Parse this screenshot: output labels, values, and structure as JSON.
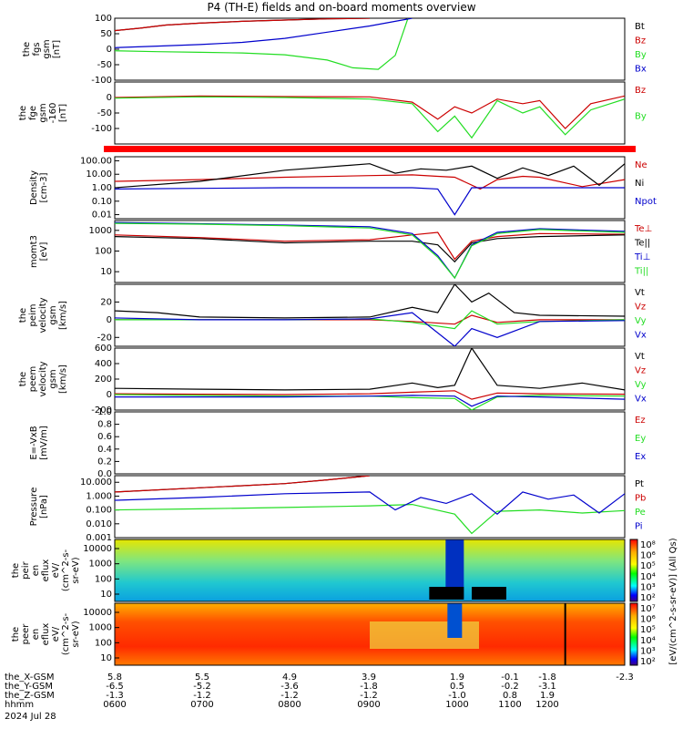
{
  "title": "P4 (TH-E) fields and on-board moments overview",
  "colors": {
    "black": "#000000",
    "red": "#cc0000",
    "green": "#22dd22",
    "blue": "#0000cc",
    "bar": "#ff0000"
  },
  "chart_data": [
    {
      "type": "line",
      "id": "fgs",
      "ylabel": [
        "the",
        "fgs",
        "gsm",
        "[nT]"
      ],
      "ylim": [
        -100,
        100
      ],
      "ticks": [
        "100",
        "50",
        "0",
        "-50",
        "-100"
      ],
      "series": [
        {
          "name": "Bt",
          "color": "black",
          "x": [
            6.0,
            6.3,
            6.6,
            7.0,
            7.5,
            8.0,
            8.5,
            9.0
          ],
          "y": [
            60,
            68,
            78,
            84,
            90,
            94,
            98,
            100
          ]
        },
        {
          "name": "Bz",
          "color": "red",
          "x": [
            6.0,
            6.3,
            6.6,
            7.0,
            7.5,
            8.0,
            8.5,
            9.0
          ],
          "y": [
            60,
            68,
            78,
            84,
            90,
            94,
            98,
            100
          ]
        },
        {
          "name": "By",
          "color": "green",
          "x": [
            6.0,
            6.5,
            7.0,
            7.5,
            8.0,
            8.5,
            8.8,
            9.1,
            9.3,
            9.45
          ],
          "y": [
            -5,
            -8,
            -10,
            -12,
            -18,
            -35,
            -60,
            -65,
            -20,
            100
          ]
        },
        {
          "name": "Bx",
          "color": "blue",
          "x": [
            6.0,
            6.5,
            7.0,
            7.5,
            8.0,
            8.5,
            9.0,
            9.3,
            9.5
          ],
          "y": [
            5,
            10,
            15,
            22,
            35,
            55,
            75,
            90,
            100
          ]
        }
      ]
    },
    {
      "type": "line",
      "id": "fge",
      "ylabel": [
        "the",
        "fge",
        "gsm",
        "-160",
        "[nT]"
      ],
      "ylim": [
        -150,
        50
      ],
      "ticks": [
        "0",
        "-50",
        "-100"
      ],
      "series": [
        {
          "name": "Bz",
          "color": "red",
          "x": [
            6.0,
            7.0,
            8.0,
            9.0,
            9.5,
            9.8,
            10.0,
            10.2,
            10.5,
            10.8,
            11.0,
            11.3,
            11.6,
            12.0
          ],
          "y": [
            0,
            5,
            3,
            2,
            -15,
            -70,
            -30,
            -50,
            -5,
            -20,
            -10,
            -100,
            -20,
            5
          ]
        },
        {
          "name": "By",
          "color": "green",
          "x": [
            6.0,
            7.0,
            8.0,
            9.0,
            9.5,
            9.8,
            10.0,
            10.2,
            10.5,
            10.8,
            11.0,
            11.3,
            11.6,
            12.0
          ],
          "y": [
            -2,
            2,
            0,
            -5,
            -20,
            -110,
            -60,
            -130,
            -10,
            -50,
            -30,
            -120,
            -40,
            -5
          ]
        }
      ]
    },
    {
      "type": "line",
      "id": "density",
      "ylabel": [
        "Density",
        "[cm-3]"
      ],
      "ylim": [
        0.005,
        200
      ],
      "scale": "log",
      "ticks": [
        "100.00",
        "10.00",
        "1.00",
        "0.10",
        "0.01"
      ],
      "series": [
        {
          "name": "Ne",
          "color": "red",
          "x": [
            6.0,
            7.0,
            8.0,
            9.0,
            9.5,
            9.8,
            10.0,
            10.3,
            10.5,
            10.8,
            11.0,
            11.5,
            12.0
          ],
          "y": [
            3,
            4,
            6,
            8,
            9,
            7,
            6,
            0.8,
            4,
            7,
            6,
            1.2,
            4
          ]
        },
        {
          "name": "Ni",
          "color": "black",
          "x": [
            6.0,
            7.0,
            8.0,
            9.0,
            9.3,
            9.6,
            9.9,
            10.2,
            10.5,
            10.8,
            11.1,
            11.4,
            11.7,
            12.0
          ],
          "y": [
            1,
            3,
            20,
            60,
            12,
            25,
            20,
            40,
            5,
            30,
            8,
            40,
            1.5,
            60
          ]
        },
        {
          "name": "Npot",
          "color": "blue",
          "x": [
            6.0,
            7.0,
            8.0,
            9.0,
            9.5,
            9.8,
            10.0,
            10.2,
            10.5,
            11.0,
            12.0
          ],
          "y": [
            0.8,
            0.9,
            1.0,
            1.0,
            1.0,
            0.8,
            0.01,
            1.0,
            1.0,
            1.0,
            1.0
          ]
        }
      ]
    },
    {
      "type": "line",
      "id": "mom",
      "ylabel": [
        "momt3",
        "[eV]"
      ],
      "ylim": [
        3,
        3000
      ],
      "scale": "log",
      "ticks": [
        "1000",
        "100",
        "10"
      ],
      "series": [
        {
          "name": "Te⊥",
          "color": "red",
          "x": [
            6.0,
            7.0,
            8.0,
            9.0,
            9.5,
            9.8,
            10.0,
            10.2,
            10.5,
            11.0,
            12.0
          ],
          "y": [
            600,
            450,
            300,
            350,
            600,
            800,
            40,
            300,
            500,
            700,
            650
          ]
        },
        {
          "name": "Te||",
          "color": "black",
          "x": [
            6.0,
            7.0,
            8.0,
            9.0,
            9.5,
            9.8,
            10.0,
            10.2,
            10.5,
            11.0,
            12.0
          ],
          "y": [
            500,
            400,
            250,
            300,
            300,
            200,
            30,
            250,
            400,
            500,
            600
          ]
        },
        {
          "name": "Ti⊥",
          "color": "blue",
          "x": [
            6.0,
            7.0,
            8.0,
            9.0,
            9.5,
            9.8,
            10.0,
            10.2,
            10.5,
            11.0,
            12.0
          ],
          "y": [
            2400,
            2100,
            1800,
            1500,
            700,
            60,
            5,
            200,
            800,
            1200,
            900
          ]
        },
        {
          "name": "Ti||",
          "color": "green",
          "x": [
            6.0,
            7.0,
            8.0,
            9.0,
            9.5,
            9.8,
            10.0,
            10.2,
            10.5,
            11.0,
            12.0
          ],
          "y": [
            2200,
            2000,
            1700,
            1300,
            600,
            50,
            5,
            180,
            700,
            1100,
            800
          ]
        }
      ]
    },
    {
      "type": "line",
      "id": "peim",
      "ylabel": [
        "the",
        "peim",
        "velocity",
        "gsm",
        "[km/s]"
      ],
      "ylim": [
        -30,
        40
      ],
      "ticks": [
        "20",
        "0",
        "-20"
      ],
      "series": [
        {
          "name": "Vt",
          "color": "black",
          "x": [
            6.0,
            6.5,
            7.0,
            8.0,
            9.0,
            9.5,
            9.8,
            10.0,
            10.2,
            10.4,
            10.7,
            11.0,
            12.0
          ],
          "y": [
            10,
            8,
            3,
            2,
            3,
            14,
            8,
            40,
            20,
            30,
            8,
            5,
            4
          ]
        },
        {
          "name": "Vz",
          "color": "red",
          "x": [
            6.0,
            7.0,
            8.0,
            9.0,
            9.5,
            10.0,
            10.2,
            10.5,
            11.0,
            12.0
          ],
          "y": [
            0,
            0,
            0,
            0,
            -2,
            -5,
            5,
            -3,
            0,
            0
          ]
        },
        {
          "name": "Vy",
          "color": "green",
          "x": [
            6.0,
            7.0,
            8.0,
            9.0,
            9.5,
            10.0,
            10.2,
            10.5,
            11.0,
            12.0
          ],
          "y": [
            0,
            0,
            0,
            1,
            -3,
            -10,
            10,
            -5,
            -2,
            0
          ]
        },
        {
          "name": "Vx",
          "color": "blue",
          "x": [
            6.0,
            7.0,
            8.0,
            9.0,
            9.5,
            10.0,
            10.2,
            10.5,
            11.0,
            12.0
          ],
          "y": [
            2,
            0,
            0,
            1,
            8,
            -30,
            -10,
            -20,
            -2,
            -1
          ]
        }
      ]
    },
    {
      "type": "line",
      "id": "peem",
      "ylabel": [
        "the",
        "peem",
        "velocity",
        "gsm",
        "[km/s]"
      ],
      "ylim": [
        -200,
        600
      ],
      "ticks": [
        "600",
        "400",
        "200",
        "0",
        "-200"
      ],
      "series": [
        {
          "name": "Vt",
          "color": "black",
          "x": [
            6.0,
            7.0,
            8.0,
            9.0,
            9.5,
            9.8,
            10.0,
            10.2,
            10.5,
            11.0,
            11.5,
            12.0
          ],
          "y": [
            80,
            70,
            60,
            70,
            150,
            90,
            120,
            600,
            120,
            80,
            150,
            60
          ]
        },
        {
          "name": "Vz",
          "color": "red",
          "x": [
            6.0,
            7.0,
            8.0,
            9.0,
            9.5,
            10.0,
            10.2,
            10.5,
            11.0,
            12.0
          ],
          "y": [
            10,
            5,
            0,
            10,
            30,
            50,
            -60,
            20,
            10,
            5
          ]
        },
        {
          "name": "Vy",
          "color": "green",
          "x": [
            6.0,
            7.0,
            8.0,
            9.0,
            9.5,
            10.0,
            10.2,
            10.5,
            11.0,
            12.0
          ],
          "y": [
            0,
            -10,
            -20,
            -20,
            -40,
            -50,
            -200,
            -30,
            -10,
            -20
          ]
        },
        {
          "name": "Vx",
          "color": "blue",
          "x": [
            6.0,
            7.0,
            8.0,
            9.0,
            9.5,
            10.0,
            10.2,
            10.5,
            11.0,
            12.0
          ],
          "y": [
            -30,
            -30,
            -30,
            -20,
            -10,
            -20,
            -150,
            -20,
            -30,
            -60
          ]
        }
      ]
    },
    {
      "type": "line",
      "id": "efield",
      "ylabel": [
        "E=-VxB",
        "[mV/m]"
      ],
      "ylim": [
        0,
        1
      ],
      "ticks": [
        "1.0",
        "0.8",
        "0.6",
        "0.4",
        "0.2",
        "0.0"
      ],
      "series": [
        {
          "name": "Ez",
          "color": "red",
          "x": [],
          "y": []
        },
        {
          "name": "Ey",
          "color": "green",
          "x": [],
          "y": []
        },
        {
          "name": "Ex",
          "color": "blue",
          "x": [],
          "y": []
        }
      ]
    },
    {
      "type": "line",
      "id": "pressure",
      "ylabel": [
        "Pressure",
        "[nPa]"
      ],
      "ylim": [
        0.001,
        30
      ],
      "scale": "log",
      "ticks": [
        "10.000",
        "1.000",
        "0.100",
        "0.010",
        "0.001"
      ],
      "series": [
        {
          "name": "Pt",
          "color": "black",
          "x": [
            6.0,
            7.0,
            8.0,
            8.5,
            9.0
          ],
          "y": [
            2,
            4,
            8,
            15,
            30
          ]
        },
        {
          "name": "Pb",
          "color": "red",
          "x": [
            6.0,
            7.0,
            8.0,
            8.5,
            9.0
          ],
          "y": [
            2,
            4,
            8,
            15,
            30
          ]
        },
        {
          "name": "Pe",
          "color": "green",
          "x": [
            6.0,
            7.0,
            8.0,
            9.0,
            9.5,
            10.0,
            10.2,
            10.5,
            11.0,
            11.5,
            12.0
          ],
          "y": [
            0.1,
            0.12,
            0.15,
            0.2,
            0.25,
            0.05,
            0.002,
            0.08,
            0.1,
            0.06,
            0.09
          ]
        },
        {
          "name": "Pi",
          "color": "blue",
          "x": [
            6.0,
            7.0,
            8.0,
            9.0,
            9.3,
            9.6,
            9.9,
            10.2,
            10.5,
            10.8,
            11.1,
            11.4,
            11.7,
            12.0
          ],
          "y": [
            0.5,
            0.8,
            1.5,
            2,
            0.1,
            0.8,
            0.3,
            1.5,
            0.05,
            2,
            0.6,
            1.2,
            0.06,
            1.5
          ]
        }
      ]
    },
    {
      "type": "heatmap",
      "id": "peir",
      "ylabel": [
        "the",
        "peir",
        "en",
        "eflux",
        "eV/",
        "(cm^2-s-",
        "sr-eV)"
      ],
      "ticks": [
        "10000",
        "1000",
        "100",
        "10"
      ]
    },
    {
      "type": "heatmap",
      "id": "peer",
      "ylabel": [
        "the",
        "peer",
        "en",
        "eflux",
        "eV/",
        "(cm^2-s-",
        "sr-eV)"
      ],
      "ticks": [
        "10000",
        "1000",
        "100",
        "10"
      ]
    }
  ],
  "colorbars": [
    {
      "ticks": [
        "10⁸",
        "10⁶",
        "10⁵",
        "10⁴",
        "10³",
        "10²"
      ]
    },
    {
      "ticks": [
        "10⁷",
        "10⁶",
        "10⁵",
        "10⁴",
        "10³",
        "10²"
      ]
    }
  ],
  "colorbar_label": "[eV/(cm^2-s-sr-eV)] (All Qs)",
  "x_axis": {
    "rows": [
      {
        "label": "the_X-GSM",
        "values": [
          "5.8",
          "5.5",
          "4.9",
          "3.9",
          "1.9",
          "-0.1",
          "-1.8",
          "-2.3"
        ]
      },
      {
        "label": "the_Y-GSM",
        "values": [
          "-6.5",
          "-5.2",
          "-3.6",
          "-1.8",
          "0.5",
          "-0.2",
          "-3.1",
          ""
        ]
      },
      {
        "label": "the_Z-GSM",
        "values": [
          "-1.3",
          "-1.2",
          "-1.2",
          "-1.2",
          "-1.0",
          "0.8",
          "1.9",
          ""
        ]
      },
      {
        "label": "hhmm",
        "values": [
          "0600",
          "0700",
          "0800",
          "0900",
          "1000",
          "1100",
          "1200",
          ""
        ]
      }
    ],
    "date": "2024 Jul 28"
  }
}
